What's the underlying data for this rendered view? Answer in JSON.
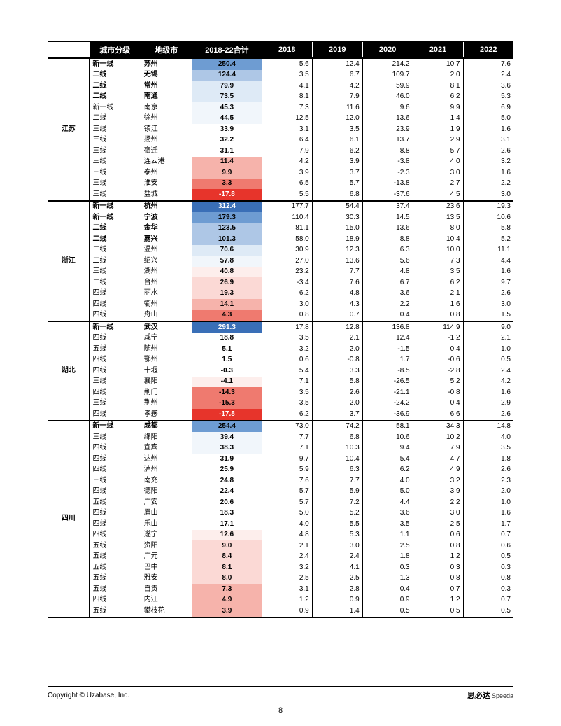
{
  "header": {
    "cols": [
      "",
      "城市分级",
      "地级市",
      "2018-22合计",
      "2018",
      "2019",
      "2020",
      "2021",
      "2022"
    ]
  },
  "colors": {
    "blue_d": "#3a6fb7",
    "blue_m": "#6e9cd2",
    "blue_l": "#aec7e6",
    "blue_vl": "#deeaf6",
    "blue_f": "#f1f6fb",
    "red_d": "#e7342b",
    "red_m": "#ef7a6f",
    "red_l": "#f6b3ab",
    "red_vl": "#fbd9d5",
    "red_f": "#fdeeec",
    "white": "#ffffff"
  },
  "provinces": [
    {
      "name": "江苏",
      "rows": [
        {
          "tier": "新一线",
          "city": "苏州",
          "total": "250.4",
          "total_color": "blue_m",
          "bold": true,
          "y": [
            "5.6",
            "12.4",
            "214.2",
            "10.7",
            "7.6"
          ]
        },
        {
          "tier": "二线",
          "city": "无锡",
          "total": "124.4",
          "total_color": "blue_l",
          "bold": true,
          "y": [
            "3.5",
            "6.7",
            "109.7",
            "2.0",
            "2.4"
          ]
        },
        {
          "tier": "二线",
          "city": "常州",
          "total": "79.9",
          "total_color": "blue_vl",
          "bold": true,
          "y": [
            "4.1",
            "4.2",
            "59.9",
            "8.1",
            "3.6"
          ]
        },
        {
          "tier": "二线",
          "city": "南通",
          "total": "73.5",
          "total_color": "blue_vl",
          "bold": true,
          "y": [
            "8.1",
            "7.9",
            "46.0",
            "6.2",
            "5.3"
          ]
        },
        {
          "tier": "新一线",
          "city": "南京",
          "total": "45.3",
          "total_color": "blue_f",
          "y": [
            "7.3",
            "11.6",
            "9.6",
            "9.9",
            "6.9"
          ]
        },
        {
          "tier": "二线",
          "city": "徐州",
          "total": "44.5",
          "total_color": "blue_f",
          "y": [
            "12.5",
            "12.0",
            "13.6",
            "1.4",
            "5.0"
          ]
        },
        {
          "tier": "三线",
          "city": "镇江",
          "total": "33.9",
          "total_color": "white",
          "y": [
            "3.1",
            "3.5",
            "23.9",
            "1.9",
            "1.6"
          ]
        },
        {
          "tier": "三线",
          "city": "扬州",
          "total": "32.2",
          "total_color": "white",
          "y": [
            "6.4",
            "6.1",
            "13.7",
            "2.9",
            "3.1"
          ]
        },
        {
          "tier": "三线",
          "city": "宿迁",
          "total": "31.1",
          "total_color": "white",
          "y": [
            "7.9",
            "6.2",
            "8.8",
            "5.7",
            "2.6"
          ]
        },
        {
          "tier": "三线",
          "city": "连云港",
          "total": "11.4",
          "total_color": "red_l",
          "y": [
            "4.2",
            "3.9",
            "-3.8",
            "4.0",
            "3.2"
          ]
        },
        {
          "tier": "三线",
          "city": "泰州",
          "total": "9.9",
          "total_color": "red_l",
          "y": [
            "3.9",
            "3.7",
            "-2.3",
            "3.0",
            "1.6"
          ]
        },
        {
          "tier": "三线",
          "city": "淮安",
          "total": "3.3",
          "total_color": "red_m",
          "y": [
            "6.5",
            "5.7",
            "-13.8",
            "2.7",
            "2.2"
          ]
        },
        {
          "tier": "三线",
          "city": "盐城",
          "total": "-17.8",
          "total_color": "red_d",
          "y": [
            "5.5",
            "6.8",
            "-37.6",
            "4.5",
            "3.0"
          ]
        }
      ]
    },
    {
      "name": "浙江",
      "rows": [
        {
          "tier": "新一线",
          "city": "杭州",
          "total": "312.4",
          "total_color": "blue_d",
          "bold": true,
          "y": [
            "177.7",
            "54.4",
            "37.4",
            "23.6",
            "19.3"
          ]
        },
        {
          "tier": "新一线",
          "city": "宁波",
          "total": "179.3",
          "total_color": "blue_m",
          "bold": true,
          "y": [
            "110.4",
            "30.3",
            "14.5",
            "13.5",
            "10.6"
          ]
        },
        {
          "tier": "二线",
          "city": "金华",
          "total": "123.5",
          "total_color": "blue_l",
          "bold": true,
          "y": [
            "81.1",
            "15.0",
            "13.6",
            "8.0",
            "5.8"
          ]
        },
        {
          "tier": "二线",
          "city": "嘉兴",
          "total": "101.3",
          "total_color": "blue_l",
          "bold": true,
          "y": [
            "58.0",
            "18.9",
            "8.8",
            "10.4",
            "5.2"
          ]
        },
        {
          "tier": "二线",
          "city": "温州",
          "total": "70.6",
          "total_color": "blue_vl",
          "y": [
            "30.9",
            "12.3",
            "6.3",
            "10.0",
            "11.1"
          ]
        },
        {
          "tier": "二线",
          "city": "绍兴",
          "total": "57.8",
          "total_color": "blue_f",
          "y": [
            "27.0",
            "13.6",
            "5.6",
            "7.3",
            "4.4"
          ]
        },
        {
          "tier": "三线",
          "city": "湖州",
          "total": "40.8",
          "total_color": "red_f",
          "y": [
            "23.2",
            "7.7",
            "4.8",
            "3.5",
            "1.6"
          ]
        },
        {
          "tier": "二线",
          "city": "台州",
          "total": "26.9",
          "total_color": "red_vl",
          "y": [
            "-3.4",
            "7.6",
            "6.7",
            "6.2",
            "9.7"
          ]
        },
        {
          "tier": "四线",
          "city": "丽水",
          "total": "19.3",
          "total_color": "red_vl",
          "y": [
            "6.2",
            "4.8",
            "3.6",
            "2.1",
            "2.6"
          ]
        },
        {
          "tier": "四线",
          "city": "衢州",
          "total": "14.1",
          "total_color": "red_l",
          "y": [
            "3.0",
            "4.3",
            "2.2",
            "1.6",
            "3.0"
          ]
        },
        {
          "tier": "四线",
          "city": "舟山",
          "total": "4.3",
          "total_color": "red_m",
          "y": [
            "0.8",
            "0.7",
            "0.4",
            "0.8",
            "1.5"
          ]
        }
      ]
    },
    {
      "name": "湖北",
      "rows": [
        {
          "tier": "新一线",
          "city": "武汉",
          "total": "291.3",
          "total_color": "blue_d",
          "bold": true,
          "y": [
            "17.8",
            "12.8",
            "136.8",
            "114.9",
            "9.0"
          ]
        },
        {
          "tier": "四线",
          "city": "咸宁",
          "total": "18.8",
          "total_color": "white",
          "y": [
            "3.5",
            "2.1",
            "12.4",
            "-1.2",
            "2.1"
          ]
        },
        {
          "tier": "五线",
          "city": "随州",
          "total": "5.1",
          "total_color": "white",
          "y": [
            "3.2",
            "2.0",
            "-1.5",
            "0.4",
            "1.0"
          ]
        },
        {
          "tier": "四线",
          "city": "鄂州",
          "total": "1.5",
          "total_color": "white",
          "y": [
            "0.6",
            "-0.8",
            "1.7",
            "-0.6",
            "0.5"
          ]
        },
        {
          "tier": "四线",
          "city": "十堰",
          "total": "-0.3",
          "total_color": "white",
          "y": [
            "5.4",
            "3.3",
            "-8.5",
            "-2.8",
            "2.4"
          ]
        },
        {
          "tier": "三线",
          "city": "襄阳",
          "total": "-4.1",
          "total_color": "red_f",
          "y": [
            "7.1",
            "5.8",
            "-26.5",
            "5.2",
            "4.2"
          ]
        },
        {
          "tier": "四线",
          "city": "荆门",
          "total": "-14.3",
          "total_color": "red_m",
          "y": [
            "3.5",
            "2.6",
            "-21.1",
            "-0.8",
            "1.6"
          ]
        },
        {
          "tier": "三线",
          "city": "荆州",
          "total": "-15.3",
          "total_color": "red_m",
          "y": [
            "3.5",
            "2.0",
            "-24.2",
            "0.4",
            "2.9"
          ]
        },
        {
          "tier": "四线",
          "city": "孝感",
          "total": "-17.8",
          "total_color": "red_d",
          "y": [
            "6.2",
            "3.7",
            "-36.9",
            "6.6",
            "2.6"
          ]
        }
      ]
    },
    {
      "name": "四川",
      "rows": [
        {
          "tier": "新一线",
          "city": "成都",
          "total": "254.4",
          "total_color": "blue_m",
          "bold": true,
          "y": [
            "73.0",
            "74.2",
            "58.1",
            "34.3",
            "14.8"
          ]
        },
        {
          "tier": "三线",
          "city": "绵阳",
          "total": "39.4",
          "total_color": "blue_f",
          "y": [
            "7.7",
            "6.8",
            "10.6",
            "10.2",
            "4.0"
          ]
        },
        {
          "tier": "四线",
          "city": "宜宾",
          "total": "38.3",
          "total_color": "blue_f",
          "y": [
            "7.1",
            "10.3",
            "9.4",
            "7.9",
            "3.5"
          ]
        },
        {
          "tier": "四线",
          "city": "达州",
          "total": "31.9",
          "total_color": "white",
          "y": [
            "9.7",
            "10.4",
            "5.4",
            "4.7",
            "1.8"
          ]
        },
        {
          "tier": "四线",
          "city": "泸州",
          "total": "25.9",
          "total_color": "white",
          "y": [
            "5.9",
            "6.3",
            "6.2",
            "4.9",
            "2.6"
          ]
        },
        {
          "tier": "三线",
          "city": "南充",
          "total": "24.8",
          "total_color": "white",
          "y": [
            "7.6",
            "7.7",
            "4.0",
            "3.2",
            "2.3"
          ]
        },
        {
          "tier": "四线",
          "city": "德阳",
          "total": "22.4",
          "total_color": "white",
          "y": [
            "5.7",
            "5.9",
            "5.0",
            "3.9",
            "2.0"
          ]
        },
        {
          "tier": "五线",
          "city": "广安",
          "total": "20.6",
          "total_color": "white",
          "y": [
            "5.7",
            "7.2",
            "4.4",
            "2.2",
            "1.0"
          ]
        },
        {
          "tier": "四线",
          "city": "眉山",
          "total": "18.3",
          "total_color": "white",
          "y": [
            "5.0",
            "5.2",
            "3.6",
            "3.0",
            "1.6"
          ]
        },
        {
          "tier": "四线",
          "city": "乐山",
          "total": "17.1",
          "total_color": "white",
          "y": [
            "4.0",
            "5.5",
            "3.5",
            "2.5",
            "1.7"
          ]
        },
        {
          "tier": "四线",
          "city": "遂宁",
          "total": "12.6",
          "total_color": "red_f",
          "y": [
            "4.8",
            "5.3",
            "1.1",
            "0.6",
            "0.7"
          ]
        },
        {
          "tier": "五线",
          "city": "资阳",
          "total": "9.0",
          "total_color": "red_vl",
          "y": [
            "2.1",
            "3.0",
            "2.5",
            "0.8",
            "0.6"
          ]
        },
        {
          "tier": "五线",
          "city": "广元",
          "total": "8.4",
          "total_color": "red_vl",
          "y": [
            "2.4",
            "2.4",
            "1.8",
            "1.2",
            "0.5"
          ]
        },
        {
          "tier": "五线",
          "city": "巴中",
          "total": "8.1",
          "total_color": "red_vl",
          "y": [
            "3.2",
            "4.1",
            "0.3",
            "0.3",
            "0.3"
          ]
        },
        {
          "tier": "五线",
          "city": "雅安",
          "total": "8.0",
          "total_color": "red_vl",
          "y": [
            "2.5",
            "2.5",
            "1.3",
            "0.8",
            "0.8"
          ]
        },
        {
          "tier": "五线",
          "city": "自贡",
          "total": "7.3",
          "total_color": "red_l",
          "y": [
            "3.1",
            "2.8",
            "0.4",
            "0.7",
            "0.3"
          ]
        },
        {
          "tier": "四线",
          "city": "内江",
          "total": "4.9",
          "total_color": "red_l",
          "y": [
            "1.2",
            "0.9",
            "0.9",
            "1.2",
            "0.7"
          ]
        },
        {
          "tier": "五线",
          "city": "攀枝花",
          "total": "3.9",
          "total_color": "red_l",
          "y": [
            "0.9",
            "1.4",
            "0.5",
            "0.5",
            "0.5"
          ]
        }
      ]
    }
  ],
  "footer": {
    "copyright": "Copyright © Uzabase, Inc.",
    "brand_cn": "思必达",
    "brand_en": "Speeda",
    "page": "8"
  }
}
